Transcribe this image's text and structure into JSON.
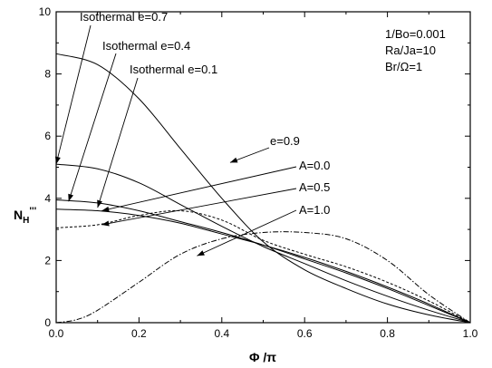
{
  "chart_data": {
    "type": "line",
    "xlabel": "Φ /π",
    "ylabel_main": "N",
    "ylabel_sub": "H",
    "ylabel_sup": "'''",
    "xlim": [
      0,
      1
    ],
    "ylim": [
      0,
      10
    ],
    "x_ticks": [
      "0.0",
      "0.2",
      "0.4",
      "0.6",
      "0.8",
      "1.0"
    ],
    "y_ticks": [
      "0",
      "2",
      "4",
      "6",
      "8",
      "10"
    ],
    "params": [
      "1/Bo=0.001",
      "Ra/Ja=10",
      "Br/Ω=1"
    ],
    "annotations": [
      "Isothermal e=0.7",
      "Isothermal e=0.4",
      "Isothermal e=0.1",
      "e=0.9",
      "A=0.0",
      "A=0.5",
      "A=1.0"
    ],
    "series": [
      {
        "style": "solid",
        "x": [
          0,
          0.1,
          0.2,
          0.3,
          0.4,
          0.5,
          0.6,
          0.7,
          0.8,
          0.9,
          1.0
        ],
        "y": [
          8.65,
          8.3,
          7.2,
          5.6,
          4.0,
          2.6,
          1.7,
          1.1,
          0.6,
          0.25,
          0
        ]
      },
      {
        "style": "solid",
        "x": [
          0,
          0.1,
          0.2,
          0.3,
          0.4,
          0.5,
          0.6,
          0.7,
          0.8,
          0.9,
          1.0
        ],
        "y": [
          5.1,
          4.95,
          4.5,
          3.8,
          3.1,
          2.45,
          1.9,
          1.35,
          0.85,
          0.4,
          0
        ]
      },
      {
        "style": "solid",
        "x": [
          0,
          0.1,
          0.2,
          0.3,
          0.4,
          0.5,
          0.6,
          0.7,
          0.8,
          0.9,
          1.0
        ],
        "y": [
          3.95,
          3.85,
          3.6,
          3.25,
          2.9,
          2.5,
          2.05,
          1.6,
          1.1,
          0.55,
          0
        ]
      },
      {
        "style": "solid",
        "x": [
          0,
          0.1,
          0.2,
          0.3,
          0.4,
          0.5,
          0.6,
          0.7,
          0.8,
          0.9,
          1.0
        ],
        "y": [
          3.65,
          3.6,
          3.45,
          3.2,
          2.85,
          2.5,
          2.1,
          1.65,
          1.15,
          0.6,
          0
        ]
      },
      {
        "style": "dashed",
        "x": [
          0,
          0.1,
          0.2,
          0.3,
          0.4,
          0.5,
          0.6,
          0.7,
          0.8,
          0.9,
          1.0
        ],
        "y": [
          3.05,
          3.15,
          3.45,
          3.6,
          3.3,
          2.65,
          2.2,
          1.8,
          1.3,
          0.7,
          0
        ]
      },
      {
        "style": "dashdot",
        "x": [
          0,
          0.05,
          0.1,
          0.2,
          0.3,
          0.4,
          0.5,
          0.6,
          0.7,
          0.8,
          0.9,
          1.0
        ],
        "y": [
          0,
          0.1,
          0.4,
          1.3,
          2.2,
          2.7,
          2.9,
          2.9,
          2.7,
          2.0,
          0.9,
          0
        ]
      }
    ]
  }
}
